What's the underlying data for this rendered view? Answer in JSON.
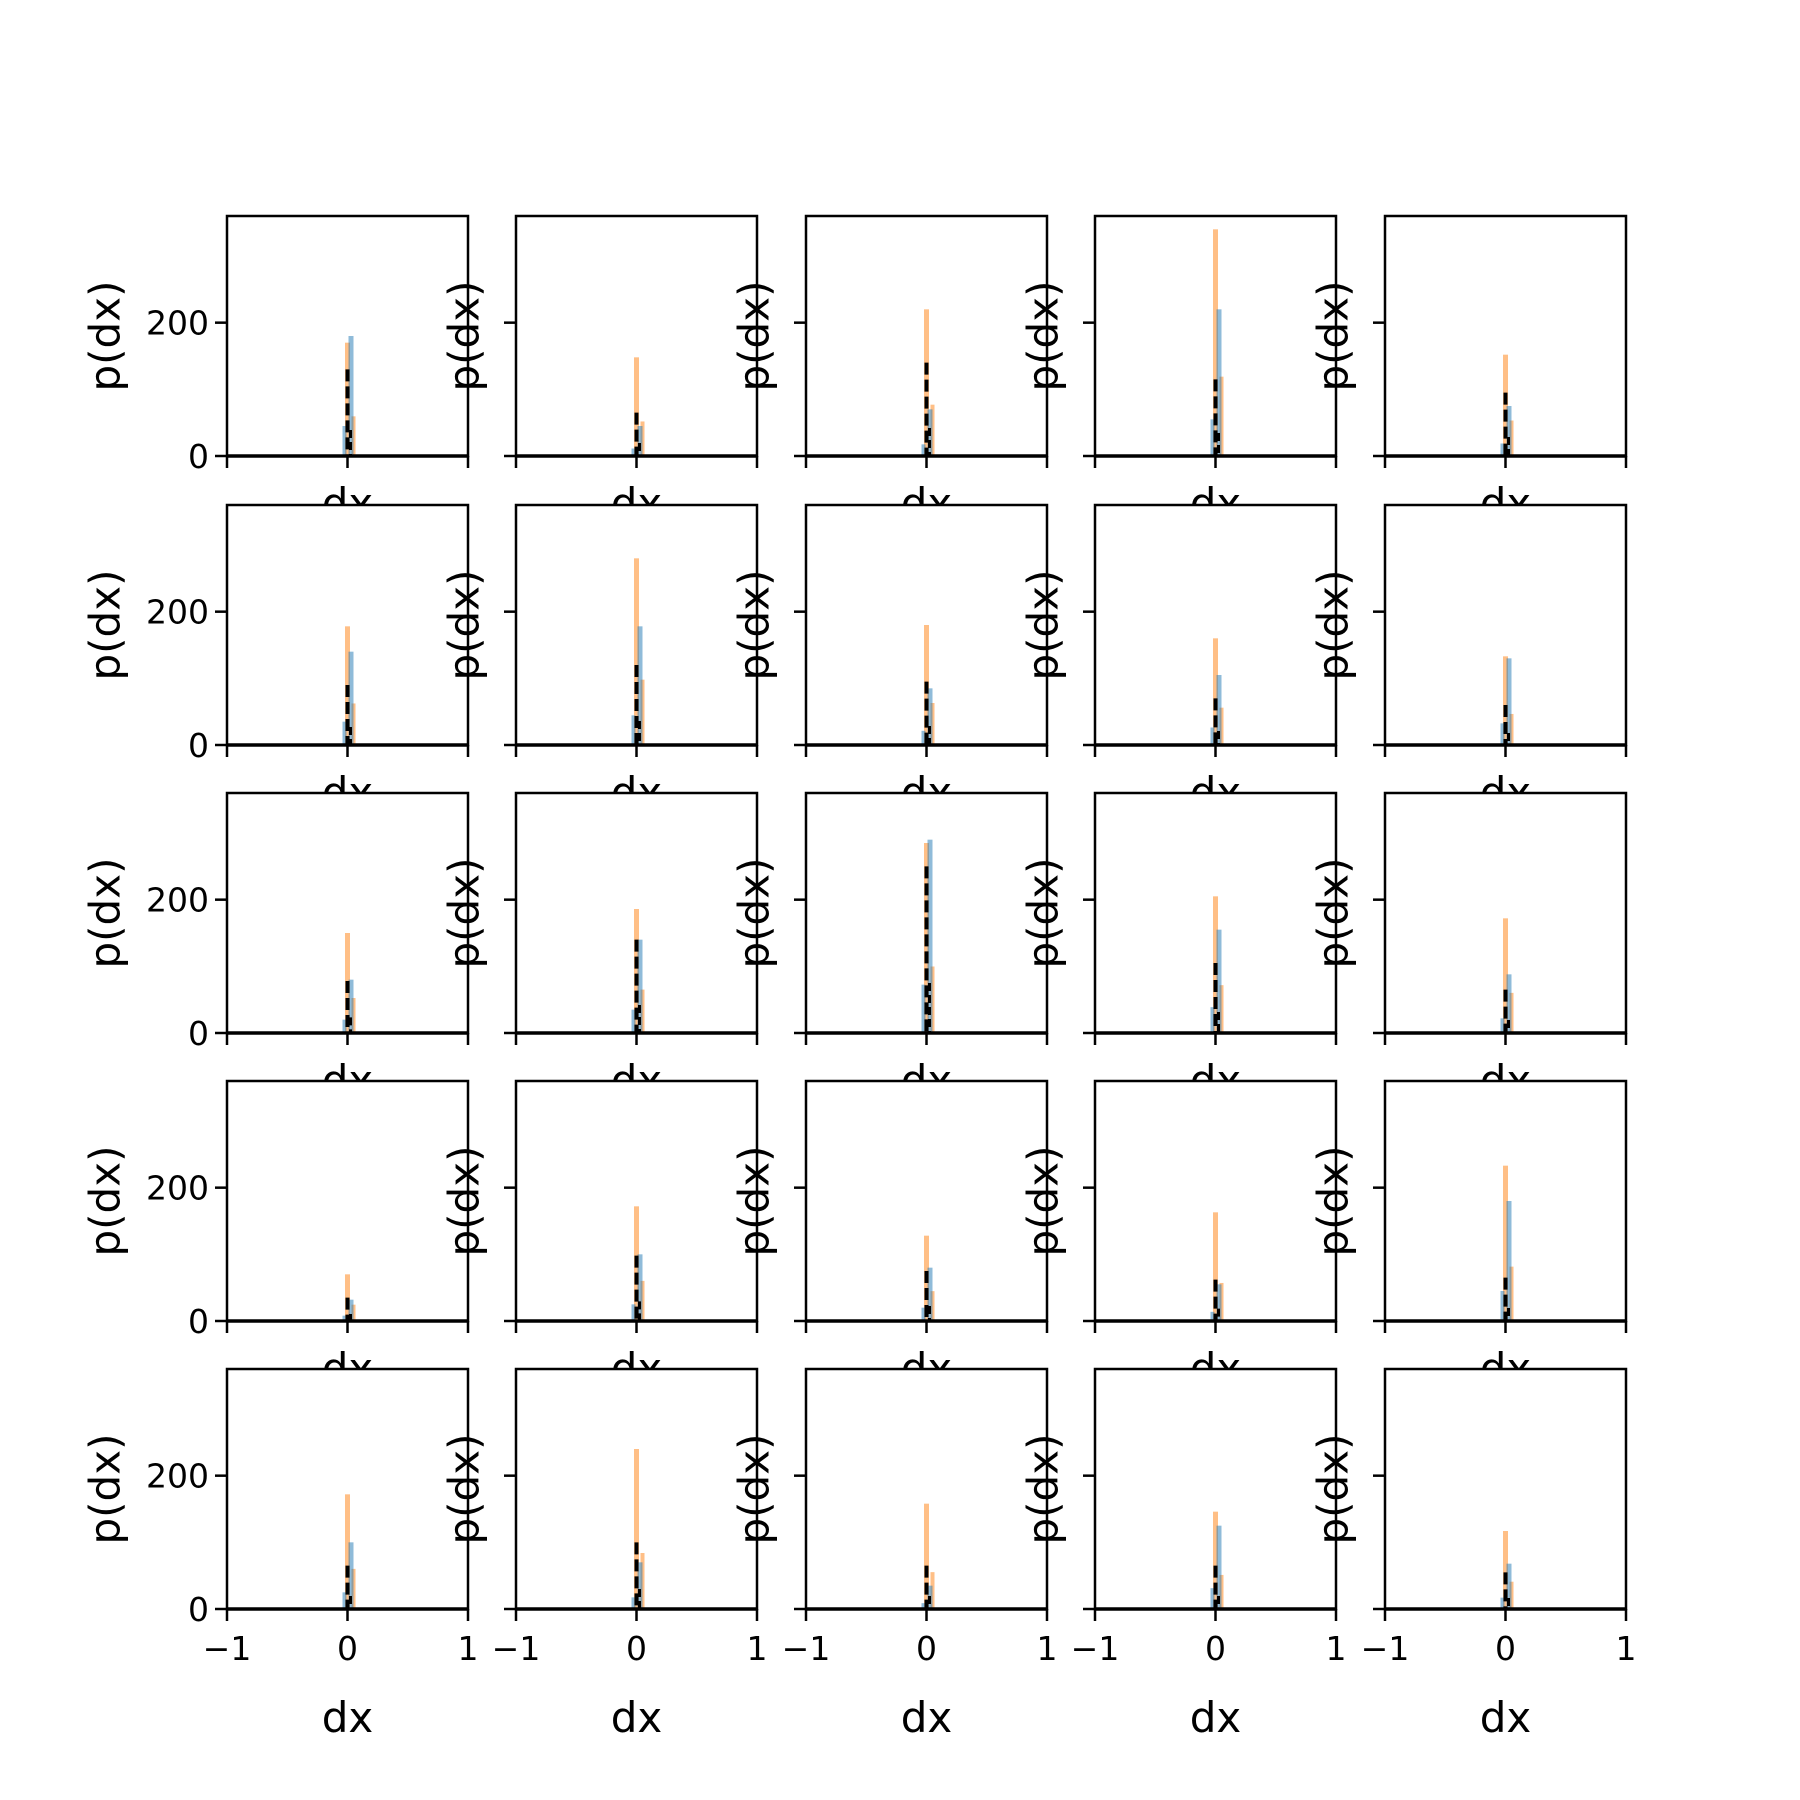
{
  "chart_data": {
    "type": "bar",
    "grid": {
      "rows": 5,
      "cols": 5,
      "sharey": true
    },
    "xlabel": "dx",
    "ylabel": "p(dx)",
    "xlim": [
      -1,
      1
    ],
    "ylim": [
      0,
      360
    ],
    "xticks": [
      -1,
      0,
      1
    ],
    "xtick_labels": [
      "−1",
      "0",
      "1"
    ],
    "yticks": [
      0,
      200
    ],
    "ytick_labels": [
      "0",
      "200"
    ],
    "grid_lines": false,
    "legend": "none",
    "colors": {
      "blue": "#1f77b4",
      "orange": "#ff7f0e",
      "black": "#000000"
    },
    "series": [
      {
        "color": "blue",
        "style": "histogram",
        "alpha": 0.5
      },
      {
        "color": "orange",
        "style": "histogram",
        "alpha": 0.5
      },
      {
        "color": "black",
        "style": "dashed-line"
      }
    ],
    "panels": [
      {
        "peaks": {
          "blue": 180,
          "orange": 170,
          "black": 130
        }
      },
      {
        "peaks": {
          "blue": 45,
          "orange": 148,
          "black": 65
        }
      },
      {
        "peaks": {
          "blue": 70,
          "orange": 220,
          "black": 140
        }
      },
      {
        "peaks": {
          "blue": 220,
          "orange": 340,
          "black": 115
        }
      },
      {
        "peaks": {
          "blue": 75,
          "orange": 152,
          "black": 95
        }
      },
      {
        "peaks": {
          "blue": 140,
          "orange": 178,
          "black": 90
        }
      },
      {
        "peaks": {
          "blue": 178,
          "orange": 280,
          "black": 120
        }
      },
      {
        "peaks": {
          "blue": 85,
          "orange": 180,
          "black": 95
        }
      },
      {
        "peaks": {
          "blue": 105,
          "orange": 160,
          "black": 70
        }
      },
      {
        "peaks": {
          "blue": 130,
          "orange": 133,
          "black": 60
        }
      },
      {
        "peaks": {
          "blue": 80,
          "orange": 150,
          "black": 78
        }
      },
      {
        "peaks": {
          "blue": 140,
          "orange": 186,
          "black": 140
        }
      },
      {
        "peaks": {
          "blue": 290,
          "orange": 285,
          "black": 250
        }
      },
      {
        "peaks": {
          "blue": 155,
          "orange": 205,
          "black": 105
        }
      },
      {
        "peaks": {
          "blue": 88,
          "orange": 172,
          "black": 65
        }
      },
      {
        "peaks": {
          "blue": 32,
          "orange": 70,
          "black": 35
        }
      },
      {
        "peaks": {
          "blue": 100,
          "orange": 172,
          "black": 98
        }
      },
      {
        "peaks": {
          "blue": 80,
          "orange": 128,
          "black": 75
        }
      },
      {
        "peaks": {
          "blue": 55,
          "orange": 163,
          "black": 62
        }
      },
      {
        "peaks": {
          "blue": 180,
          "orange": 233,
          "black": 65
        }
      },
      {
        "peaks": {
          "blue": 100,
          "orange": 172,
          "black": 65
        }
      },
      {
        "peaks": {
          "blue": 70,
          "orange": 240,
          "black": 100
        }
      },
      {
        "peaks": {
          "blue": 35,
          "orange": 158,
          "black": 65
        }
      },
      {
        "peaks": {
          "blue": 125,
          "orange": 146,
          "black": 65
        }
      },
      {
        "peaks": {
          "blue": 68,
          "orange": 117,
          "black": 55
        }
      }
    ]
  }
}
